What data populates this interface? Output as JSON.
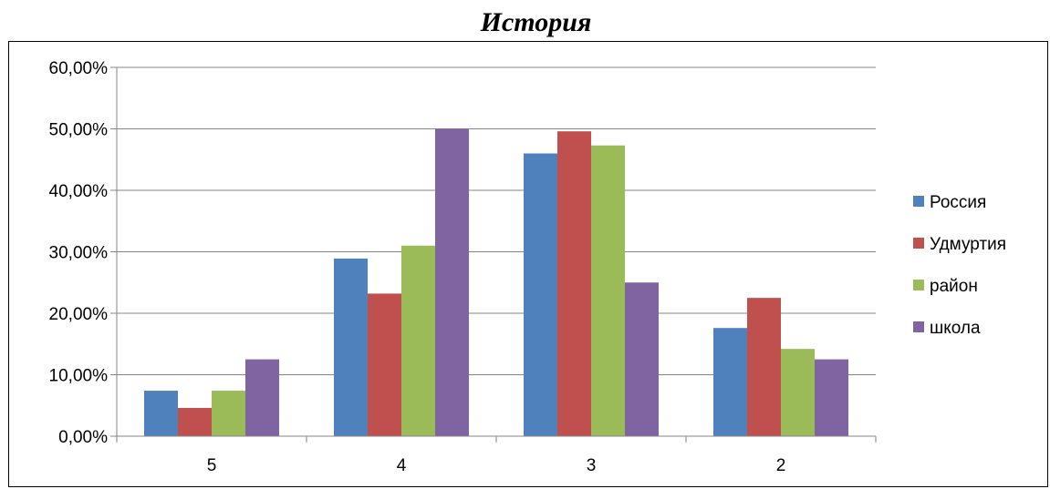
{
  "chart_data": {
    "type": "bar",
    "title": "История",
    "categories": [
      "5",
      "4",
      "3",
      "2"
    ],
    "series": [
      {
        "name": "Россия",
        "color": "#4F81BD",
        "values": [
          0.074,
          0.289,
          0.46,
          0.176
        ]
      },
      {
        "name": "Удмуртия",
        "color": "#C0504D",
        "values": [
          0.046,
          0.232,
          0.496,
          0.225
        ]
      },
      {
        "name": "район",
        "color": "#9BBB59",
        "values": [
          0.074,
          0.31,
          0.473,
          0.142
        ]
      },
      {
        "name": "школа",
        "color": "#8064A2",
        "values": [
          0.125,
          0.5,
          0.25,
          0.125
        ]
      }
    ],
    "yticks": [
      "0,00%",
      "10,00%",
      "20,00%",
      "30,00%",
      "40,00%",
      "50,00%",
      "60,00%"
    ],
    "ylim": [
      0,
      0.6
    ],
    "grid": true,
    "legend_position": "right"
  }
}
